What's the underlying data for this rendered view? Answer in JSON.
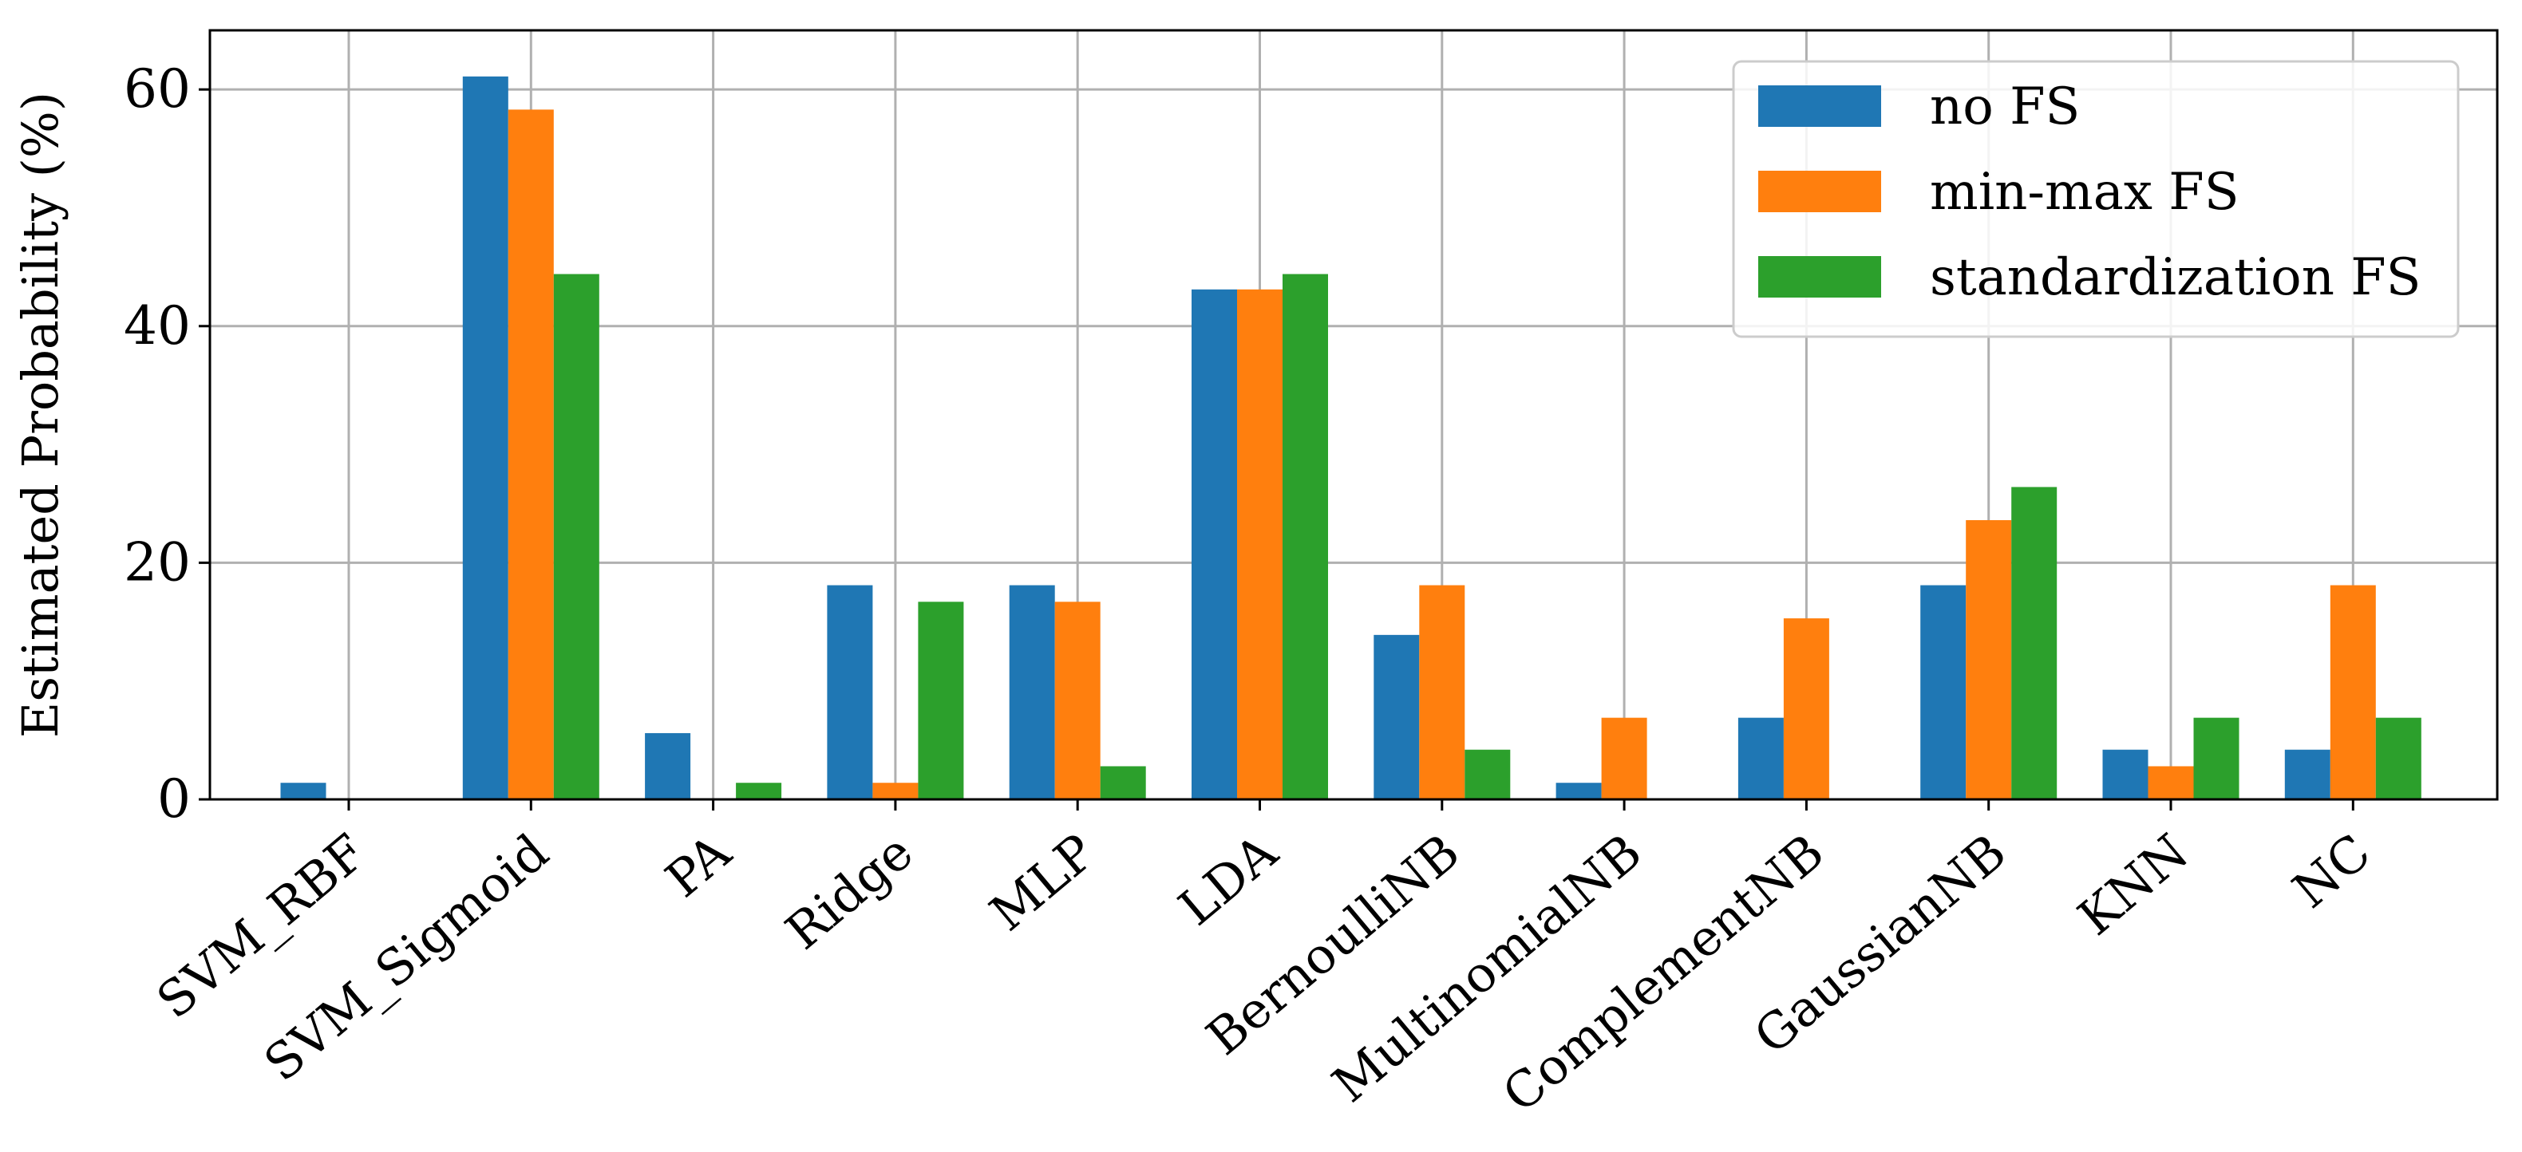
{
  "chart_data": {
    "type": "bar",
    "categories": [
      "SVM_RBF",
      "SVM_Sigmoid",
      "PA",
      "Ridge",
      "MLP",
      "LDA",
      "BernoulliNB",
      "MultinomialNB",
      "ComplementNB",
      "GaussianNB",
      "KNN",
      "NC"
    ],
    "series": [
      {
        "name": "no FS",
        "color": "#1f77b4",
        "values": [
          1.4,
          61.1,
          5.6,
          18.1,
          18.1,
          43.1,
          13.9,
          1.4,
          6.9,
          18.1,
          4.2,
          4.2
        ]
      },
      {
        "name": "min-max FS",
        "color": "#ff7f0e",
        "values": [
          0,
          58.3,
          0,
          1.4,
          16.7,
          43.1,
          18.1,
          6.9,
          15.3,
          23.6,
          2.8,
          18.1
        ]
      },
      {
        "name": "standardization FS",
        "color": "#2ca02c",
        "values": [
          0,
          44.4,
          1.4,
          16.7,
          2.8,
          44.4,
          4.2,
          0,
          0,
          26.4,
          6.9,
          6.9
        ]
      }
    ],
    "xlabel": "",
    "ylabel": "Estimated Probability (%)",
    "ylim": [
      0,
      65
    ],
    "yticks": [
      "0",
      "20",
      "40",
      "60"
    ],
    "grid": true,
    "legend_position": "top-right"
  }
}
